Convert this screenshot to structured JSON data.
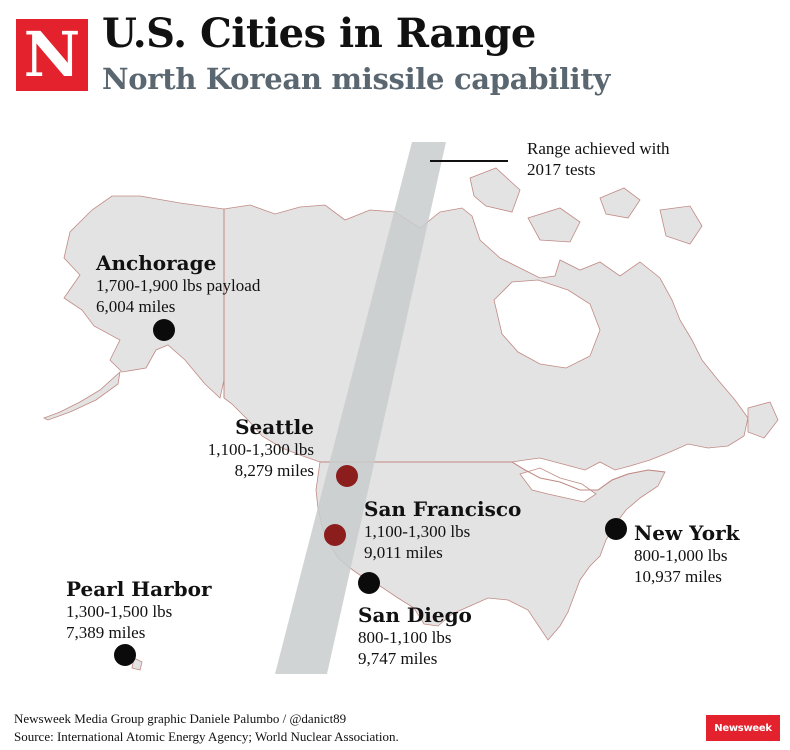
{
  "header": {
    "logo_letter": "N",
    "title": "U.S. Cities in Range",
    "subtitle": "North Korean missile capability"
  },
  "legend": {
    "label_line1": "Range achieved with",
    "label_line2": "2017 tests"
  },
  "cities": [
    {
      "name": "Anchorage",
      "payload": "1,700-1,900 lbs payload",
      "distance": "6,004 miles",
      "in_range": false
    },
    {
      "name": "Seattle",
      "payload": "1,100-1,300 lbs",
      "distance": "8,279 miles",
      "in_range": true
    },
    {
      "name": "San Francisco",
      "payload": "1,100-1,300 lbs",
      "distance": "9,011 miles",
      "in_range": true
    },
    {
      "name": "New York",
      "payload": "800-1,000 lbs",
      "distance": "10,937 miles",
      "in_range": false
    },
    {
      "name": "Pearl Harbor",
      "payload": "1,300-1,500 lbs",
      "distance": "7,389 miles",
      "in_range": false
    },
    {
      "name": "San Diego",
      "payload": "800-1,100 lbs",
      "distance": "9,747 miles",
      "in_range": false
    }
  ],
  "footer": {
    "credit": "Newsweek Media Group graphic Daniele Palumbo / @danict89",
    "source": "Source: International Atomic Energy Agency; World Nuclear Association.",
    "badge": "Newsweek"
  },
  "colors": {
    "brand_red": "#e3222d",
    "subtitle": "#5a6770",
    "land": "#e4e3e4",
    "border": "#c08a84",
    "range_band": "#c9cccc",
    "in_range_dot": "#8b1d1d",
    "dot": "#0b0b0b"
  }
}
